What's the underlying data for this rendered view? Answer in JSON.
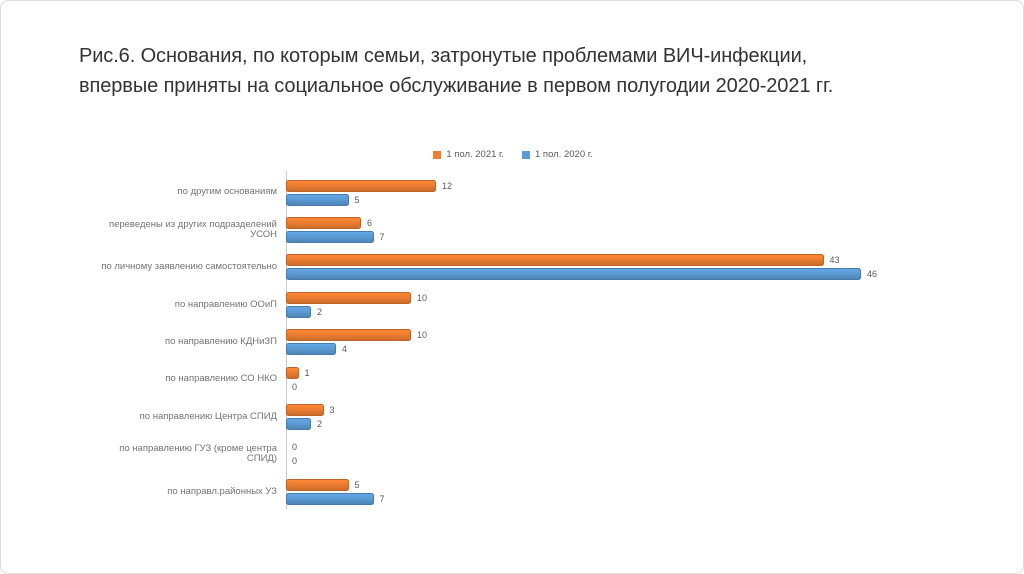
{
  "title": "Рис.6. Основания, по которым семьи, затронутые проблемами ВИЧ-инфекции, впервые приняты на социальное обслуживание в первом полугодии 2020-2021 гг.",
  "colors": {
    "series_2021": "#ED7D31",
    "series_2020": "#5B9BD5",
    "axis_line": "#C9C9C9",
    "title_text": "#333333",
    "category_label": "#737373",
    "value_label": "#595959",
    "background": "#FFFFFF"
  },
  "chart_data": {
    "type": "bar",
    "orientation": "horizontal",
    "title": "Рис.6. Основания, по которым семьи, затронутые проблемами ВИЧ-инфекции, впервые приняты на социальное обслуживание в первом полугодии 2020-2021 гг.",
    "categories": [
      "по другим основаниям",
      "переведены из других подразделений УСОН",
      "по личному заявлению самостоятельно",
      "по направлению ООиП",
      "по направлению КДНиЗП",
      "по направлению СО НКО",
      "по направлению Центра СПИД",
      "по направлению ГУЗ (кроме центра СПИД)",
      "по направл.районных УЗ"
    ],
    "series": [
      {
        "name": "1 пол. 2021 г.",
        "color": "#ED7D31",
        "values": [
          12,
          6,
          43,
          10,
          10,
          1,
          3,
          0,
          5
        ]
      },
      {
        "name": "1 пол. 2020 г.",
        "color": "#5B9BD5",
        "values": [
          5,
          7,
          46,
          2,
          4,
          0,
          2,
          0,
          7
        ]
      }
    ],
    "xlim": [
      0,
      50
    ],
    "grid": false,
    "legend_position": "top-center",
    "value_labels": true
  }
}
